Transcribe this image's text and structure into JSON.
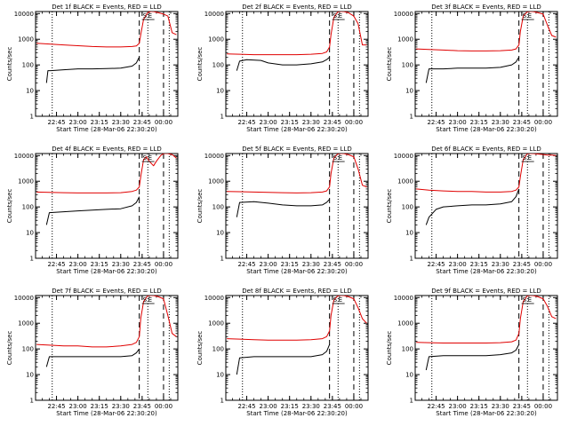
{
  "colors": {
    "events": "#000000",
    "lld": "#e00000",
    "axis": "#000000"
  },
  "chart_data": [
    {
      "type": "line",
      "title": "Det 1f BLACK = Events, RED = LLD",
      "xlabel": "Start Time (28-Mar-06 22:30:20)",
      "ylabel": "Counts/sec",
      "yscale": "log",
      "ylim": [
        1,
        12000
      ],
      "ytick_labels": [
        "1",
        "10",
        "100",
        "1000",
        "10000"
      ],
      "xlim": [
        "22:30:20",
        "00:10:00"
      ],
      "xtick_labels": [
        "22:45",
        "23:00",
        "23:15",
        "23:30",
        "23:45",
        "00:00"
      ],
      "markers": {
        "dotted": [
          "22:42",
          "23:49",
          "00:04"
        ],
        "dashed": [
          "23:43",
          "00:00"
        ]
      },
      "legend_marks": [
        "S",
        "E"
      ],
      "series": [
        {
          "role": "events",
          "x": [
            "22:38",
            "22:39",
            "22:41",
            "22:50",
            "23:00",
            "23:10",
            "23:20",
            "23:30",
            "23:38",
            "23:41",
            "23:42",
            "23:43"
          ],
          "y": [
            20,
            60,
            60,
            65,
            70,
            70,
            72,
            75,
            90,
            120,
            160,
            200
          ]
        },
        {
          "role": "lld",
          "x": [
            "22:31",
            "22:40",
            "22:50",
            "23:00",
            "23:10",
            "23:20",
            "23:30",
            "23:38",
            "23:41",
            "23:43",
            "23:44",
            "23:46",
            "23:49",
            "23:51",
            "23:53",
            "23:56",
            "00:00",
            "00:03",
            "00:06",
            "00:09"
          ],
          "y": [
            700,
            650,
            600,
            560,
            520,
            500,
            500,
            520,
            550,
            700,
            1500,
            6000,
            11000,
            12000,
            12000,
            11000,
            9500,
            8000,
            1800,
            1500
          ]
        }
      ]
    },
    {
      "type": "line",
      "title": "Det 2f BLACK = Events, RED = LLD",
      "xlabel": "Start Time (28-Mar-06 22:30:20)",
      "ylabel": "Counts/sec",
      "yscale": "log",
      "ylim": [
        1,
        12000
      ],
      "ytick_labels": [
        "1",
        "10",
        "100",
        "1000",
        "10000"
      ],
      "xlim": [
        "22:30:20",
        "00:10:00"
      ],
      "xtick_labels": [
        "22:45",
        "23:00",
        "23:15",
        "23:30",
        "23:45",
        "00:00"
      ],
      "markers": {
        "dotted": [
          "22:42",
          "23:49",
          "00:04"
        ],
        "dashed": [
          "23:43",
          "00:00"
        ]
      },
      "legend_marks": [
        "S",
        "E"
      ],
      "series": [
        {
          "role": "events",
          "x": [
            "22:38",
            "22:40",
            "22:45",
            "22:55",
            "23:00",
            "23:10",
            "23:20",
            "23:30",
            "23:38",
            "23:41",
            "23:43"
          ],
          "y": [
            60,
            140,
            160,
            150,
            120,
            100,
            100,
            110,
            130,
            160,
            200
          ]
        },
        {
          "role": "lld",
          "x": [
            "22:31",
            "22:40",
            "22:50",
            "23:00",
            "23:10",
            "23:20",
            "23:30",
            "23:38",
            "23:41",
            "23:43",
            "23:44",
            "23:46",
            "23:49",
            "23:53",
            "23:56",
            "00:00",
            "00:03",
            "00:06",
            "00:09"
          ],
          "y": [
            270,
            260,
            250,
            250,
            250,
            250,
            260,
            280,
            320,
            500,
            1500,
            7000,
            12000,
            12000,
            11000,
            8000,
            4000,
            600,
            600
          ]
        }
      ]
    },
    {
      "type": "line",
      "title": "Det 3f BLACK = Events, RED = LLD",
      "xlabel": "Start Time (28-Mar-06 22:30:20)",
      "ylabel": "Counts/sec",
      "yscale": "log",
      "ylim": [
        1,
        12000
      ],
      "ytick_labels": [
        "1",
        "10",
        "100",
        "1000",
        "10000"
      ],
      "xlim": [
        "22:30:20",
        "00:10:00"
      ],
      "xtick_labels": [
        "22:45",
        "23:00",
        "23:15",
        "23:30",
        "23:45",
        "00:00"
      ],
      "markers": {
        "dotted": [
          "22:42",
          "23:49",
          "00:04"
        ],
        "dashed": [
          "23:43",
          "00:00"
        ]
      },
      "legend_marks": [
        "S",
        "E"
      ],
      "series": [
        {
          "role": "events",
          "x": [
            "22:38",
            "22:40",
            "22:50",
            "23:00",
            "23:10",
            "23:20",
            "23:30",
            "23:38",
            "23:41",
            "23:43"
          ],
          "y": [
            20,
            70,
            70,
            75,
            75,
            75,
            80,
            100,
            130,
            200
          ]
        },
        {
          "role": "lld",
          "x": [
            "22:31",
            "22:40",
            "22:50",
            "23:00",
            "23:10",
            "23:20",
            "23:30",
            "23:38",
            "23:41",
            "23:43",
            "23:44",
            "23:46",
            "23:49",
            "23:53",
            "23:56",
            "00:00",
            "00:03",
            "00:06",
            "00:09"
          ],
          "y": [
            420,
            400,
            380,
            360,
            350,
            350,
            360,
            380,
            420,
            600,
            2000,
            8000,
            12000,
            12000,
            11000,
            9500,
            3500,
            1400,
            1200
          ]
        }
      ]
    },
    {
      "type": "line",
      "title": "Det 4f BLACK = Events, RED = LLD",
      "xlabel": "Start Time (28-Mar-06 22:30:20)",
      "ylabel": "Counts/sec",
      "yscale": "log",
      "ylim": [
        1,
        12000
      ],
      "ytick_labels": [
        "1",
        "10",
        "100",
        "1000",
        "10000"
      ],
      "xlim": [
        "22:30:20",
        "00:10:00"
      ],
      "xtick_labels": [
        "22:45",
        "23:00",
        "23:15",
        "23:30",
        "23:45",
        "00:00"
      ],
      "markers": {
        "dotted": [
          "22:42",
          "23:49",
          "00:04"
        ],
        "dashed": [
          "23:43",
          "00:00"
        ]
      },
      "legend_marks": [
        "S",
        "E"
      ],
      "series": [
        {
          "role": "events",
          "x": [
            "22:38",
            "22:40",
            "22:50",
            "23:00",
            "23:10",
            "23:20",
            "23:30",
            "23:38",
            "23:41",
            "23:43"
          ],
          "y": [
            20,
            60,
            65,
            70,
            75,
            80,
            85,
            110,
            150,
            250
          ]
        },
        {
          "role": "lld",
          "x": [
            "22:31",
            "22:40",
            "22:50",
            "23:00",
            "23:10",
            "23:20",
            "23:30",
            "23:38",
            "23:41",
            "23:43",
            "23:44",
            "23:46",
            "23:48",
            "23:50",
            "23:53",
            "23:55",
            "23:58",
            "00:00",
            "00:03",
            "00:06",
            "00:09"
          ],
          "y": [
            380,
            370,
            360,
            350,
            350,
            350,
            360,
            400,
            450,
            600,
            1500,
            7000,
            9000,
            6000,
            4000,
            6000,
            10000,
            12000,
            12000,
            11000,
            8000
          ]
        }
      ]
    },
    {
      "type": "line",
      "title": "Det 5f BLACK = Events, RED = LLD",
      "xlabel": "Start Time (28-Mar-06 22:30:20)",
      "ylabel": "Counts/sec",
      "yscale": "log",
      "ylim": [
        1,
        12000
      ],
      "ytick_labels": [
        "1",
        "10",
        "100",
        "1000",
        "10000"
      ],
      "xlim": [
        "22:30:20",
        "00:10:00"
      ],
      "xtick_labels": [
        "22:45",
        "23:00",
        "23:15",
        "23:30",
        "23:45",
        "00:00"
      ],
      "markers": {
        "dotted": [
          "22:42",
          "23:49",
          "00:04"
        ],
        "dashed": [
          "23:43",
          "00:00"
        ]
      },
      "legend_marks": [
        "S",
        "E"
      ],
      "series": [
        {
          "role": "events",
          "x": [
            "22:38",
            "22:40",
            "22:50",
            "23:00",
            "23:10",
            "23:20",
            "23:30",
            "23:38",
            "23:41",
            "23:43"
          ],
          "y": [
            40,
            150,
            160,
            140,
            120,
            110,
            110,
            120,
            150,
            200
          ]
        },
        {
          "role": "lld",
          "x": [
            "22:31",
            "22:40",
            "22:50",
            "23:00",
            "23:10",
            "23:20",
            "23:30",
            "23:38",
            "23:41",
            "23:43",
            "23:44",
            "23:46",
            "23:49",
            "23:53",
            "23:56",
            "00:00",
            "00:03",
            "00:06",
            "00:09"
          ],
          "y": [
            400,
            390,
            380,
            370,
            360,
            350,
            360,
            380,
            420,
            600,
            2000,
            8000,
            12000,
            12000,
            11000,
            9000,
            3000,
            700,
            600
          ]
        }
      ]
    },
    {
      "type": "line",
      "title": "Det 6f BLACK = Events, RED = LLD",
      "xlabel": "Start Time (28-Mar-06 22:30:20)",
      "ylabel": "Counts/sec",
      "yscale": "log",
      "ylim": [
        1,
        12000
      ],
      "ytick_labels": [
        "1",
        "10",
        "100",
        "1000",
        "10000"
      ],
      "xlim": [
        "22:30:20",
        "00:10:00"
      ],
      "xtick_labels": [
        "22:45",
        "23:00",
        "23:15",
        "23:30",
        "23:45",
        "00:00"
      ],
      "markers": {
        "dotted": [
          "22:42",
          "23:49",
          "00:04"
        ],
        "dashed": [
          "23:43",
          "00:00"
        ]
      },
      "legend_marks": [
        "S",
        "E"
      ],
      "series": [
        {
          "role": "events",
          "x": [
            "22:38",
            "22:40",
            "22:45",
            "22:50",
            "23:00",
            "23:10",
            "23:20",
            "23:30",
            "23:38",
            "23:41",
            "23:43"
          ],
          "y": [
            20,
            40,
            80,
            100,
            110,
            120,
            120,
            130,
            160,
            250,
            500
          ]
        },
        {
          "role": "lld",
          "x": [
            "22:31",
            "22:40",
            "22:50",
            "23:00",
            "23:10",
            "23:20",
            "23:30",
            "23:38",
            "23:41",
            "23:43",
            "23:44",
            "23:46",
            "23:49",
            "23:53",
            "23:56",
            "00:00",
            "00:03",
            "00:06",
            "00:09"
          ],
          "y": [
            500,
            450,
            420,
            400,
            400,
            380,
            380,
            400,
            450,
            600,
            1500,
            7000,
            12000,
            12000,
            11500,
            11000,
            10500,
            10500,
            10000
          ]
        }
      ]
    },
    {
      "type": "line",
      "title": "Det 7f BLACK = Events, RED = LLD",
      "xlabel": "Start Time (28-Mar-06 22:30:20)",
      "ylabel": "Counts/sec",
      "yscale": "log",
      "ylim": [
        1,
        12000
      ],
      "ytick_labels": [
        "1",
        "10",
        "100",
        "1000",
        "10000"
      ],
      "xlim": [
        "22:30:20",
        "00:10:00"
      ],
      "xtick_labels": [
        "22:45",
        "23:00",
        "23:15",
        "23:30",
        "23:45",
        "00:00"
      ],
      "markers": {
        "dotted": [
          "22:42",
          "23:49",
          "00:04"
        ],
        "dashed": [
          "23:43",
          "00:00"
        ]
      },
      "legend_marks": [
        "S",
        "E"
      ],
      "series": [
        {
          "role": "events",
          "x": [
            "22:38",
            "22:40",
            "22:50",
            "23:00",
            "23:10",
            "23:20",
            "23:30",
            "23:38",
            "23:41",
            "23:43"
          ],
          "y": [
            20,
            50,
            50,
            50,
            50,
            50,
            50,
            55,
            70,
            100
          ]
        },
        {
          "role": "lld",
          "x": [
            "22:31",
            "22:40",
            "22:50",
            "23:00",
            "23:10",
            "23:20",
            "23:30",
            "23:38",
            "23:41",
            "23:43",
            "23:44",
            "23:46",
            "23:49",
            "23:53",
            "23:56",
            "00:00",
            "00:03",
            "00:06",
            "00:09"
          ],
          "y": [
            150,
            140,
            130,
            130,
            120,
            120,
            130,
            150,
            180,
            300,
            1500,
            7000,
            12000,
            12000,
            11000,
            9000,
            2000,
            400,
            300
          ]
        }
      ]
    },
    {
      "type": "line",
      "title": "Det 8f BLACK = Events, RED = LLD",
      "xlabel": "Start Time (28-Mar-06 22:30:20)",
      "ylabel": "Counts/sec",
      "yscale": "log",
      "ylim": [
        1,
        12000
      ],
      "ytick_labels": [
        "1",
        "10",
        "100",
        "1000",
        "10000"
      ],
      "xlim": [
        "22:30:20",
        "00:10:00"
      ],
      "xtick_labels": [
        "22:45",
        "23:00",
        "23:15",
        "23:30",
        "23:45",
        "00:00"
      ],
      "markers": {
        "dotted": [
          "22:42",
          "23:49",
          "00:04"
        ],
        "dashed": [
          "23:43",
          "00:00"
        ]
      },
      "legend_marks": [
        "S",
        "E"
      ],
      "series": [
        {
          "role": "events",
          "x": [
            "22:38",
            "22:40",
            "22:50",
            "23:00",
            "23:10",
            "23:20",
            "23:30",
            "23:38",
            "23:41",
            "23:43"
          ],
          "y": [
            10,
            45,
            50,
            50,
            50,
            50,
            50,
            60,
            80,
            150
          ]
        },
        {
          "role": "lld",
          "x": [
            "22:31",
            "22:40",
            "22:50",
            "23:00",
            "23:10",
            "23:20",
            "23:30",
            "23:38",
            "23:41",
            "23:43",
            "23:44",
            "23:46",
            "23:49",
            "23:53",
            "23:56",
            "00:00",
            "00:03",
            "00:06",
            "00:09"
          ],
          "y": [
            250,
            240,
            230,
            220,
            220,
            220,
            230,
            250,
            300,
            500,
            2000,
            8000,
            12000,
            12000,
            11000,
            9000,
            4000,
            1500,
            1000
          ]
        }
      ]
    },
    {
      "type": "line",
      "title": "Det 9f BLACK = Events, RED = LLD",
      "xlabel": "Start Time (28-Mar-06 22:30:20)",
      "ylabel": "Counts/sec",
      "yscale": "log",
      "ylim": [
        1,
        12000
      ],
      "ytick_labels": [
        "1",
        "10",
        "100",
        "1000",
        "10000"
      ],
      "xlim": [
        "22:30:20",
        "00:10:00"
      ],
      "xtick_labels": [
        "22:45",
        "23:00",
        "23:15",
        "23:30",
        "23:45",
        "00:00"
      ],
      "markers": {
        "dotted": [
          "22:42",
          "23:49",
          "00:04"
        ],
        "dashed": [
          "23:43",
          "00:00"
        ]
      },
      "legend_marks": [
        "S",
        "E"
      ],
      "series": [
        {
          "role": "events",
          "x": [
            "22:38",
            "22:40",
            "22:50",
            "23:00",
            "23:10",
            "23:20",
            "23:30",
            "23:38",
            "23:41",
            "23:43"
          ],
          "y": [
            15,
            50,
            55,
            55,
            55,
            55,
            60,
            70,
            90,
            150
          ]
        },
        {
          "role": "lld",
          "x": [
            "22:31",
            "22:40",
            "22:50",
            "23:00",
            "23:10",
            "23:20",
            "23:30",
            "23:38",
            "23:41",
            "23:43",
            "23:44",
            "23:46",
            "23:49",
            "23:53",
            "23:56",
            "00:00",
            "00:03",
            "00:06",
            "00:09"
          ],
          "y": [
            180,
            175,
            170,
            170,
            170,
            170,
            175,
            190,
            220,
            400,
            1500,
            7000,
            12000,
            12000,
            11000,
            9000,
            4500,
            1800,
            1500
          ]
        }
      ]
    }
  ]
}
